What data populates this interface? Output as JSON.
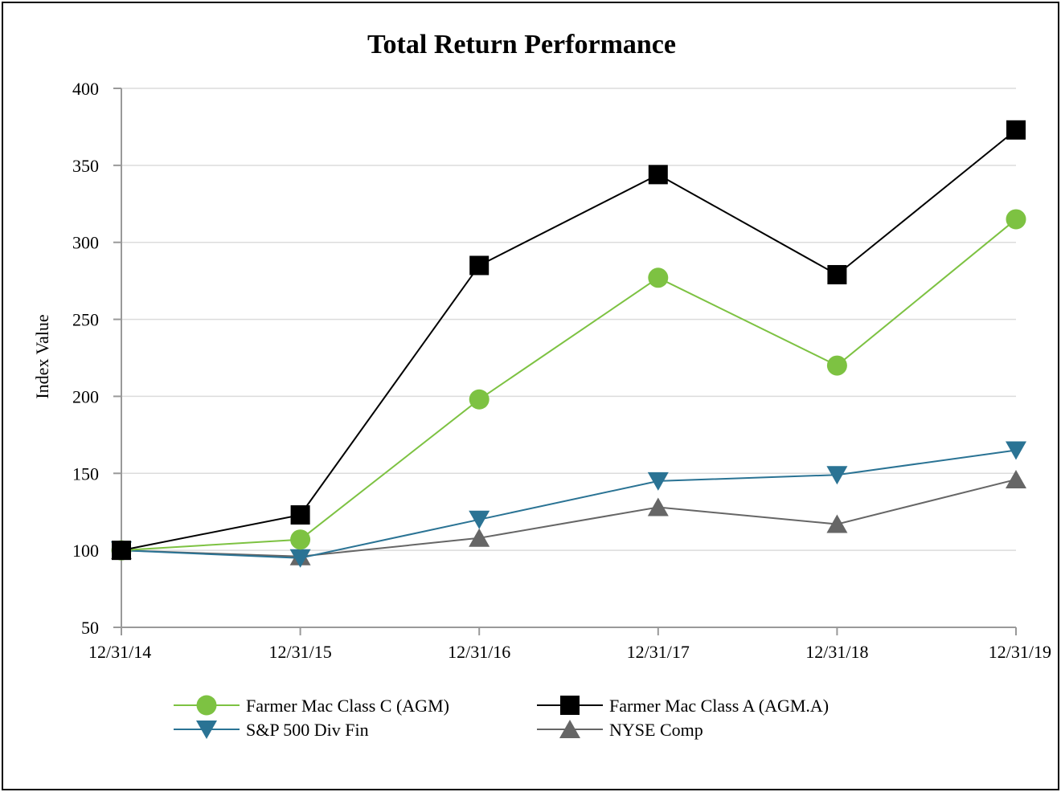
{
  "chart_data": {
    "type": "line",
    "title": "Total Return Performance",
    "xlabel": "",
    "ylabel": "Index Value",
    "categories": [
      "12/31/14",
      "12/31/15",
      "12/31/16",
      "12/31/17",
      "12/31/18",
      "12/31/19"
    ],
    "ylim": [
      50,
      400
    ],
    "yticks": [
      "50",
      "100",
      "150",
      "200",
      "250",
      "300",
      "350",
      "400"
    ],
    "grid": true,
    "legend_position": "bottom",
    "series": [
      {
        "name": "Farmer Mac Class C (AGM)",
        "values": [
          100,
          107,
          198,
          277,
          220,
          315
        ],
        "color": "#7dc242",
        "marker": "circle"
      },
      {
        "name": "Farmer Mac Class A (AGM.A)",
        "values": [
          100,
          123,
          285,
          344,
          279,
          373
        ],
        "color": "#000000",
        "marker": "square"
      },
      {
        "name": "S&P 500 Div Fin",
        "values": [
          100,
          95,
          120,
          145,
          149,
          165
        ],
        "color": "#2a7394",
        "marker": "triangle-down"
      },
      {
        "name": "NYSE Comp",
        "values": [
          100,
          96,
          108,
          128,
          117,
          146
        ],
        "color": "#666666",
        "marker": "triangle-up"
      }
    ]
  }
}
